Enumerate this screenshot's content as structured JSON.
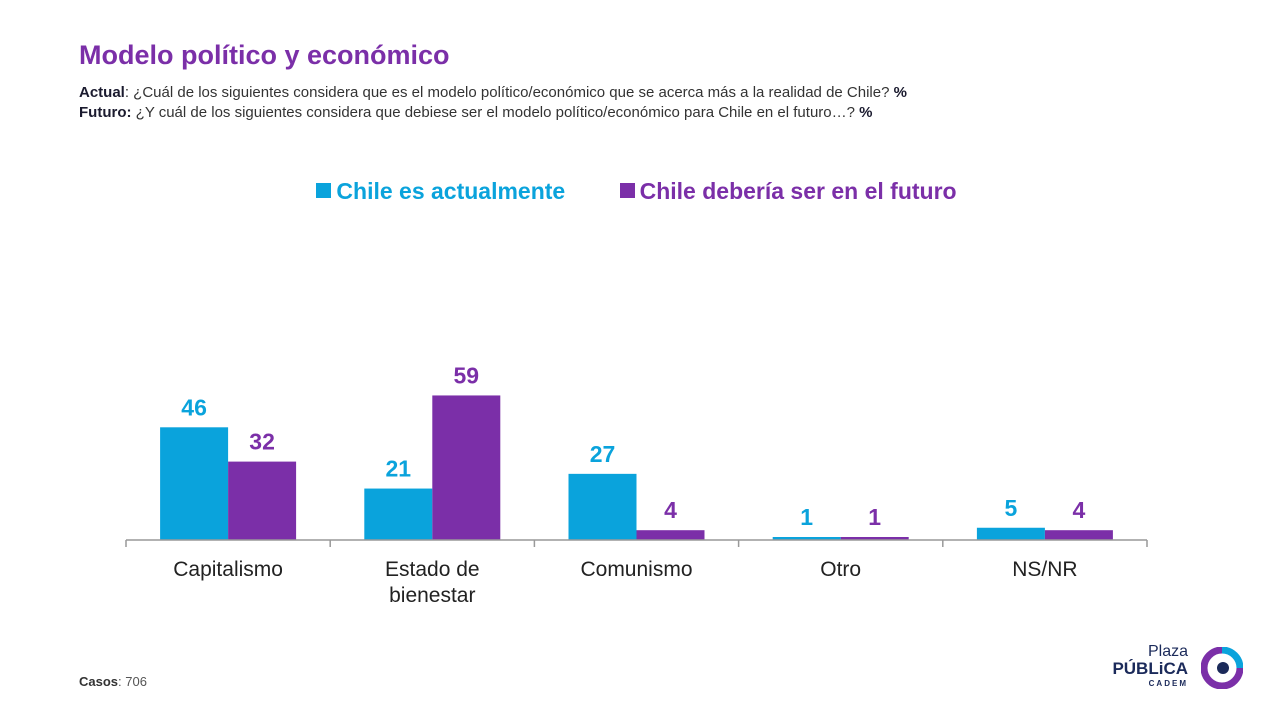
{
  "header": {
    "title": "Modelo político y económico",
    "q1_label": "Actual",
    "q1_text": ": ¿Cuál de los siguientes considera que es el modelo político/económico que se acerca más a la realidad de Chile?",
    "q1_unit": "%",
    "q2_label": "Futuro:",
    "q2_text": " ¿Y cuál de los siguientes considera que debiese ser el modelo político/económico para Chile en el futuro…?",
    "q2_unit": "%"
  },
  "footer": {
    "casos_label": "Casos",
    "casos_value": ": 706"
  },
  "logo": {
    "line1": "Plaza",
    "line2": "PÚBLiCA",
    "line3": "CADEM"
  },
  "colors": {
    "actual": "#0AA3DC",
    "futuro": "#7B2FA8"
  },
  "chart_data": {
    "type": "bar",
    "categories": [
      [
        "Capitalismo"
      ],
      [
        "Estado de",
        "bienestar"
      ],
      [
        "Comunismo"
      ],
      [
        "Otro"
      ],
      [
        "NS/NR"
      ]
    ],
    "series": [
      {
        "name": "Chile es actualmente",
        "values": [
          46,
          21,
          27,
          1,
          5
        ]
      },
      {
        "name": "Chile debería ser en el futuro",
        "values": [
          32,
          59,
          4,
          1,
          4
        ]
      }
    ],
    "ylim": [
      0,
      60
    ],
    "grid": false,
    "legend_position": "top-center"
  }
}
